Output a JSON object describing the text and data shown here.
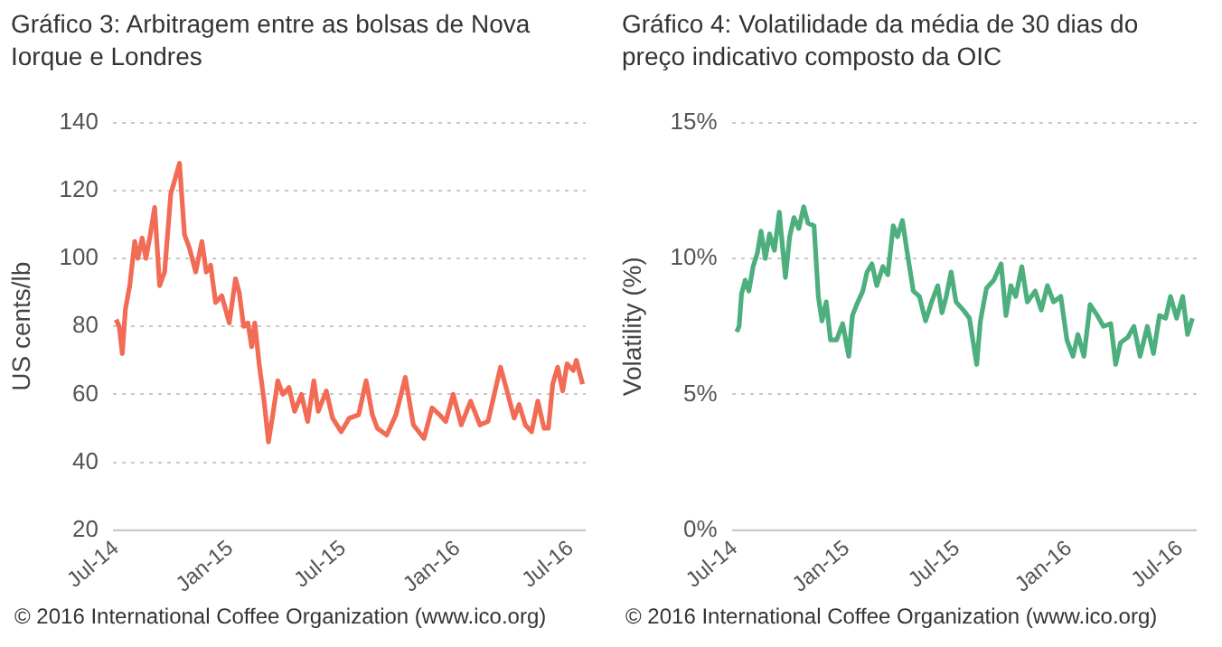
{
  "chart_data": [
    {
      "type": "line",
      "title": "Gráfico 3:  Arbitragem entre as bolsas de Nova Iorque e Londres",
      "ylabel": "US cents/lb",
      "annotations": [
        "© 2016 International Coffee Organization (www.ico.org)"
      ],
      "grid": "y",
      "marker": "none",
      "line_style": "solid",
      "xlim": [
        "2014-06-26",
        "2016-07-25"
      ],
      "xticks": [
        {
          "value": "2014-07-01",
          "label": "Jul-14"
        },
        {
          "value": "2015-01-01",
          "label": "Jan-15"
        },
        {
          "value": "2015-07-01",
          "label": "Jul-15"
        },
        {
          "value": "2016-01-01",
          "label": "Jan-16"
        },
        {
          "value": "2016-07-01",
          "label": "Jul-16"
        }
      ],
      "ylim": [
        20,
        140
      ],
      "yticks": [
        20,
        40,
        60,
        80,
        100,
        120,
        140
      ],
      "series": [
        {
          "color": "#f26b55",
          "x": [
            "2014-07-01",
            "2014-07-06",
            "2014-07-11",
            "2014-07-16",
            "2014-07-23",
            "2014-07-31",
            "2014-08-05",
            "2014-08-12",
            "2014-08-18",
            "2014-08-25",
            "2014-09-01",
            "2014-09-09",
            "2014-09-17",
            "2014-09-27",
            "2014-10-11",
            "2014-10-19",
            "2014-10-27",
            "2014-11-06",
            "2014-11-16",
            "2014-11-23",
            "2014-11-30",
            "2014-12-08",
            "2014-12-18",
            "2014-12-30",
            "2015-01-09",
            "2015-01-15",
            "2015-01-22",
            "2015-01-29",
            "2015-02-04",
            "2015-02-09",
            "2015-02-16",
            "2015-02-24",
            "2015-03-03",
            "2015-03-10",
            "2015-03-18",
            "2015-03-26",
            "2015-04-05",
            "2015-04-14",
            "2015-04-25",
            "2015-05-05",
            "2015-05-15",
            "2015-05-22",
            "2015-06-04",
            "2015-06-14",
            "2015-06-28",
            "2015-07-11",
            "2015-07-26",
            "2015-08-07",
            "2015-08-17",
            "2015-08-25",
            "2015-09-09",
            "2015-09-24",
            "2015-10-09",
            "2015-10-22",
            "2015-11-08",
            "2015-11-21",
            "2015-12-03",
            "2015-12-13",
            "2015-12-25",
            "2016-01-07",
            "2016-01-22",
            "2016-02-06",
            "2016-02-19",
            "2016-02-29",
            "2016-03-10",
            "2016-03-22",
            "2016-04-01",
            "2016-04-09",
            "2016-04-19",
            "2016-04-29",
            "2016-05-09",
            "2016-05-19",
            "2016-05-26",
            "2016-06-02",
            "2016-06-10",
            "2016-06-18",
            "2016-06-25",
            "2016-07-05",
            "2016-07-10",
            "2016-07-20"
          ],
          "values": [
            82,
            80,
            72,
            85,
            92,
            105,
            100,
            106,
            100,
            107,
            115,
            92,
            96,
            119,
            128,
            107,
            103,
            96,
            105,
            96,
            98,
            87,
            89,
            81,
            94,
            90,
            80,
            81,
            74,
            81,
            69,
            58,
            46,
            54,
            64,
            60,
            62,
            55,
            60,
            52,
            64,
            55,
            61,
            53,
            49,
            53,
            54,
            64,
            54,
            50,
            48,
            54,
            65,
            51,
            47,
            56,
            54,
            52,
            60,
            51,
            58,
            51,
            52,
            60,
            68,
            60,
            53,
            57,
            51,
            49,
            58,
            50,
            50,
            63,
            68,
            61,
            69,
            67,
            70,
            63
          ]
        }
      ]
    },
    {
      "type": "line",
      "title": "Gráfico 4:  Volatilidade da média de 30 dias do preço indicativo composto da OIC",
      "ylabel": "Volatility (%)",
      "annotations": [
        "© 2016 International Coffee Organization (www.ico.org)"
      ],
      "grid": "y",
      "marker": "none",
      "line_style": "solid",
      "xlim": [
        "2014-06-26",
        "2016-07-28"
      ],
      "xticks": [
        {
          "value": "2014-07-01",
          "label": "Jul-14"
        },
        {
          "value": "2015-01-01",
          "label": "Jan-15"
        },
        {
          "value": "2015-07-01",
          "label": "Jul-15"
        },
        {
          "value": "2016-01-01",
          "label": "Jan-16"
        },
        {
          "value": "2016-07-01",
          "label": "Jul-16"
        }
      ],
      "ylim": [
        0,
        15
      ],
      "yticks": [
        {
          "value": 0,
          "label": "0%"
        },
        {
          "value": 5,
          "label": "5%"
        },
        {
          "value": 10,
          "label": "10%"
        },
        {
          "value": 15,
          "label": "15%"
        }
      ],
      "series": [
        {
          "color": "#4caf7d",
          "x": [
            "2014-07-04",
            "2014-07-08",
            "2014-07-12",
            "2014-07-18",
            "2014-07-24",
            "2014-07-31",
            "2014-08-07",
            "2014-08-13",
            "2014-08-20",
            "2014-08-27",
            "2014-09-04",
            "2014-09-12",
            "2014-09-22",
            "2014-09-29",
            "2014-10-06",
            "2014-10-14",
            "2014-10-22",
            "2014-10-29",
            "2014-11-08",
            "2014-11-15",
            "2014-11-21",
            "2014-11-28",
            "2014-12-05",
            "2014-12-15",
            "2014-12-25",
            "2015-01-04",
            "2015-01-10",
            "2015-01-17",
            "2015-01-27",
            "2015-02-03",
            "2015-02-11",
            "2015-02-19",
            "2015-03-01",
            "2015-03-09",
            "2015-03-18",
            "2015-03-25",
            "2015-04-02",
            "2015-04-10",
            "2015-04-20",
            "2015-04-30",
            "2015-05-10",
            "2015-05-20",
            "2015-05-30",
            "2015-06-06",
            "2015-06-13",
            "2015-06-21",
            "2015-06-29",
            "2015-07-11",
            "2015-07-21",
            "2015-08-02",
            "2015-08-08",
            "2015-08-18",
            "2015-08-30",
            "2015-09-11",
            "2015-09-19",
            "2015-09-27",
            "2015-10-05",
            "2015-10-15",
            "2015-10-24",
            "2015-11-06",
            "2015-11-16",
            "2015-11-26",
            "2015-12-06",
            "2015-12-18",
            "2015-12-28",
            "2016-01-07",
            "2016-01-15",
            "2016-01-25",
            "2016-02-04",
            "2016-02-16",
            "2016-02-26",
            "2016-03-09",
            "2016-03-17",
            "2016-03-25",
            "2016-04-06",
            "2016-04-16",
            "2016-04-26",
            "2016-05-08",
            "2016-05-18",
            "2016-05-28",
            "2016-06-07",
            "2016-06-15",
            "2016-06-25",
            "2016-07-05",
            "2016-07-13",
            "2016-07-21"
          ],
          "values": [
            7.3,
            7.5,
            8.7,
            9.2,
            8.8,
            9.7,
            10.2,
            11.0,
            10.0,
            10.9,
            10.3,
            11.7,
            9.3,
            10.8,
            11.5,
            11.1,
            11.9,
            11.3,
            11.2,
            8.6,
            7.7,
            8.4,
            7.0,
            7.0,
            7.6,
            6.4,
            7.9,
            8.3,
            8.8,
            9.5,
            9.8,
            9.0,
            9.7,
            9.4,
            11.2,
            10.8,
            11.4,
            10.2,
            8.8,
            8.6,
            7.7,
            8.4,
            9.0,
            8.0,
            8.6,
            9.5,
            8.4,
            8.1,
            7.8,
            6.1,
            7.7,
            8.9,
            9.2,
            9.8,
            7.9,
            9.0,
            8.6,
            9.7,
            8.4,
            8.8,
            8.1,
            9.0,
            8.4,
            8.6,
            7.0,
            6.4,
            7.2,
            6.4,
            8.3,
            7.9,
            7.5,
            7.6,
            6.1,
            6.9,
            7.1,
            7.5,
            6.4,
            7.5,
            6.5,
            7.9,
            7.8,
            8.6,
            7.8,
            8.6,
            7.2,
            7.8
          ]
        }
      ]
    }
  ]
}
